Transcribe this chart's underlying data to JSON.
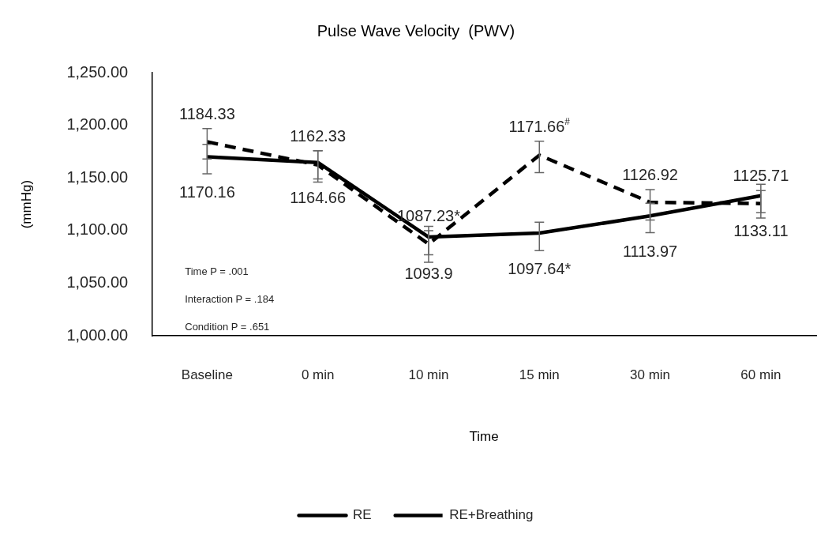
{
  "chart_data": {
    "type": "line",
    "title": "Pulse Wave Velocity  (PWV)",
    "xlabel": "Time",
    "ylabel": "(mmHg)",
    "categories": [
      "Baseline",
      "0 min",
      "10 min",
      "15 min",
      "30 min",
      "60 min"
    ],
    "series": [
      {
        "name": "RE",
        "color": "#000000",
        "line_style": "solid",
        "values": [
          1170.16,
          1164.66,
          1093.9,
          1097.64,
          1113.97,
          1133.11
        ],
        "value_labels": [
          "1170.16",
          "1164.66",
          "1093.9",
          "1097.64*",
          "1113.97",
          "1133.11"
        ],
        "errors": [
          [
            1154,
            1182
          ],
          [
            1149,
            1176
          ],
          [
            1077,
            1104
          ],
          [
            1081,
            1108
          ],
          [
            1098,
            1126
          ],
          [
            1117,
            1144
          ]
        ]
      },
      {
        "name": "RE+Breathing",
        "color": "#000000",
        "line_style": "dashed",
        "values": [
          1184.33,
          1162.33,
          1087.23,
          1171.66,
          1126.92,
          1125.71
        ],
        "value_labels": [
          "1184.33",
          "1162.33",
          "1087.23*",
          "1171.66$^{#}$",
          "1126.92",
          "1125.71"
        ],
        "errors": [
          [
            1168,
            1197
          ],
          [
            1146,
            1176
          ],
          [
            1070,
            1100
          ],
          [
            1155,
            1185
          ],
          [
            1110,
            1139
          ],
          [
            1112,
            1138
          ]
        ]
      }
    ],
    "ylim": [
      1000,
      1250
    ],
    "yticks": [
      {
        "value": 1000,
        "label": "1,000.00"
      },
      {
        "value": 1050,
        "label": "1,050.00"
      },
      {
        "value": 1100,
        "label": "1,100.00"
      },
      {
        "value": 1150,
        "label": "1,150.00"
      },
      {
        "value": 1200,
        "label": "1,200.00"
      },
      {
        "value": 1250,
        "label": "1,250.00"
      }
    ],
    "annotations": [
      "Time P = .001",
      "Interaction P = .184",
      "Condition P = .651"
    ],
    "grid": false,
    "legend": "bottom",
    "marker": "none"
  }
}
